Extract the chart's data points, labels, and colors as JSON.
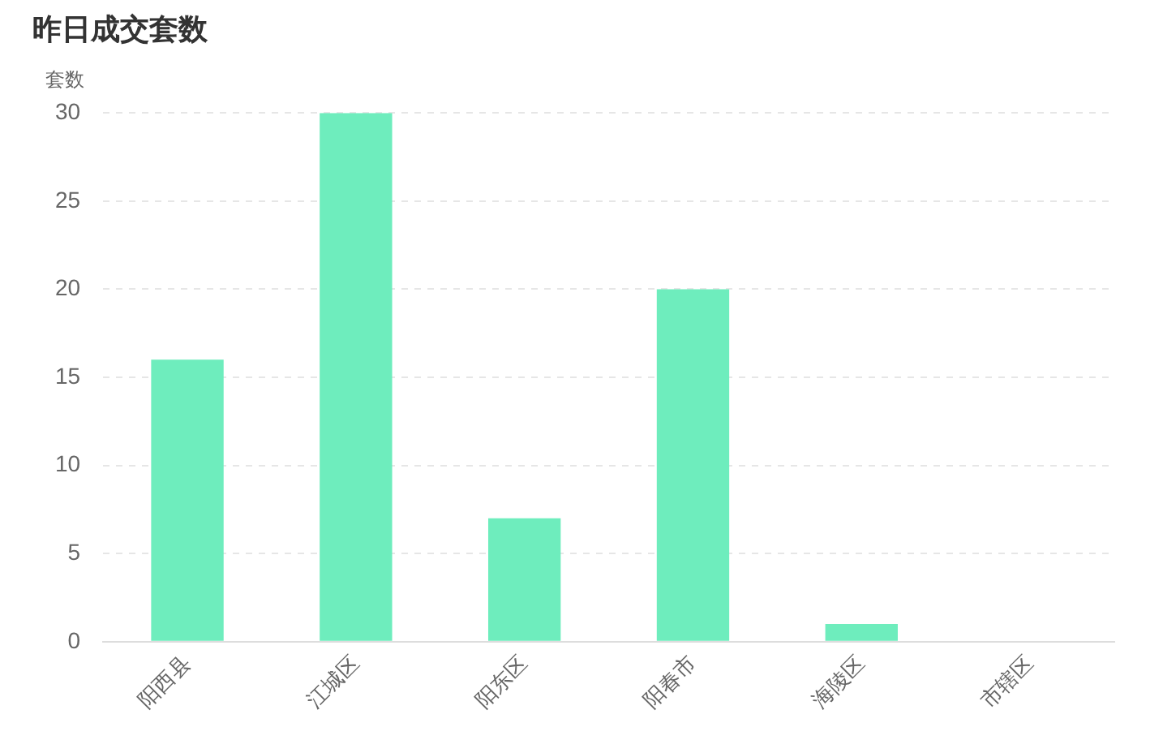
{
  "chart_data": {
    "type": "bar",
    "title": "昨日成交套数",
    "ylabel": "套数",
    "categories": [
      "阳西县",
      "江城区",
      "阳东区",
      "阳春市",
      "海陵区",
      "市辖区"
    ],
    "values": [
      16,
      30,
      7,
      20,
      1,
      0
    ],
    "color": "#6eedbd",
    "ylim": [
      0,
      30
    ],
    "yticks": [
      0,
      5,
      10,
      15,
      20,
      25,
      30
    ],
    "grid": "y"
  }
}
